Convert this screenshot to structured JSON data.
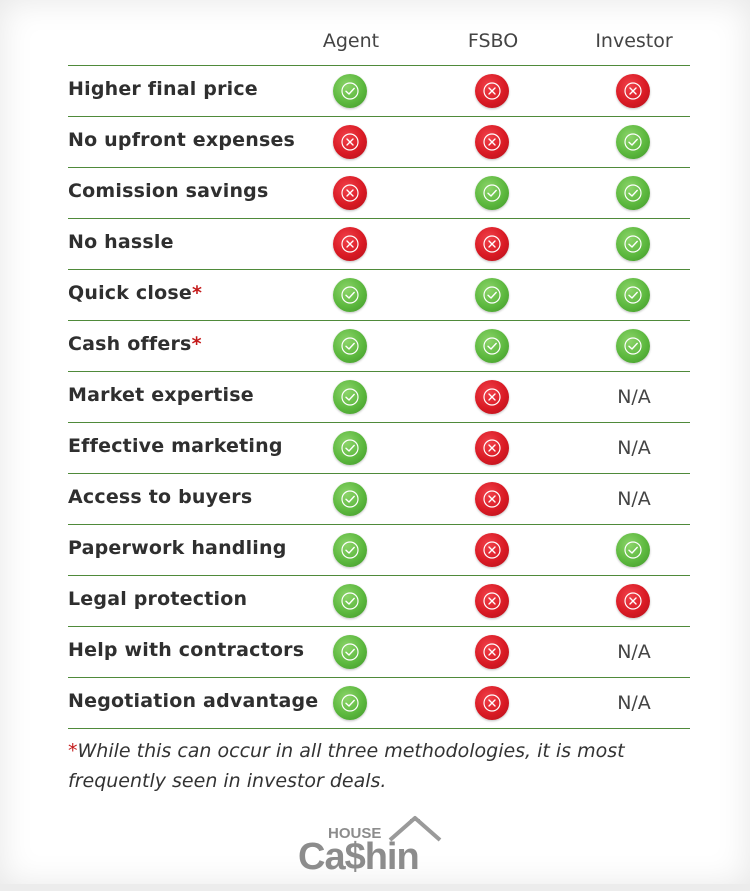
{
  "columns": [
    "Agent",
    "FSBO",
    "Investor"
  ],
  "rows": [
    {
      "label": "Higher final price",
      "asterisk": "",
      "values": [
        "yes",
        "no",
        "no"
      ]
    },
    {
      "label": "No upfront expenses",
      "asterisk": "",
      "values": [
        "no",
        "no",
        "yes"
      ]
    },
    {
      "label": "Comission savings",
      "asterisk": "",
      "values": [
        "no",
        "yes",
        "yes"
      ]
    },
    {
      "label": "No hassle",
      "asterisk": "",
      "values": [
        "no",
        "no",
        "yes"
      ]
    },
    {
      "label": "Quick close",
      "asterisk": "*",
      "values": [
        "yes",
        "yes",
        "yes"
      ]
    },
    {
      "label": "Cash offers",
      "asterisk": "*",
      "values": [
        "yes",
        "yes",
        "yes"
      ]
    },
    {
      "label": "Market expertise",
      "asterisk": "",
      "values": [
        "yes",
        "no",
        "N/A"
      ]
    },
    {
      "label": "Effective marketing",
      "asterisk": "",
      "values": [
        "yes",
        "no",
        "N/A"
      ]
    },
    {
      "label": "Access to buyers",
      "asterisk": "",
      "values": [
        "yes",
        "no",
        "N/A"
      ]
    },
    {
      "label": "Paperwork handling",
      "asterisk": "",
      "values": [
        "yes",
        "no",
        "yes"
      ]
    },
    {
      "label": "Legal protection",
      "asterisk": "",
      "values": [
        "yes",
        "no",
        "no"
      ]
    },
    {
      "label": "Help with contractors",
      "asterisk": "",
      "values": [
        "yes",
        "no",
        "N/A"
      ]
    },
    {
      "label": "Negotiation advantage",
      "asterisk": "",
      "values": [
        "yes",
        "no",
        "N/A"
      ]
    }
  ],
  "icons": {
    "yes": "check-circle-icon",
    "no": "x-circle-icon"
  },
  "colors": {
    "yes": "#5cb83e",
    "no": "#d91a24",
    "divider": "#4f8a3a",
    "asterisk": "#c41a1a"
  },
  "footnote": {
    "asterisk": "*",
    "text": "While this can occur in all three methodologies, it is most frequently seen in investor deals."
  },
  "logo": {
    "top": "HOUSE",
    "main_a": "Ca",
    "main_dollar": "$",
    "main_b": "hin"
  }
}
